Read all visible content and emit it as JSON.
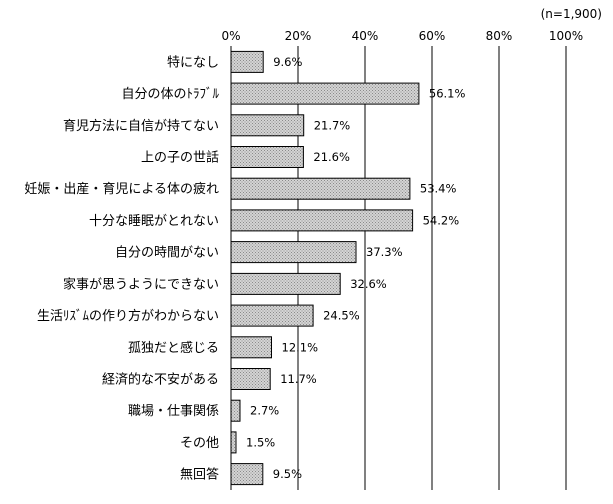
{
  "chart_data": {
    "type": "bar",
    "orientation": "horizontal",
    "note": "(n=1,900)",
    "categories": [
      "特になし",
      "自分の体のﾄﾗﾌﾞﾙ",
      "育児方法に自信が持てない",
      "上の子の世話",
      "妊娠・出産・育児による体の疲れ",
      "十分な睡眠がとれない",
      "自分の時間がない",
      "家事が思うようにできない",
      "生活ﾘｽﾞﾑの作り方がわからない",
      "孤独だと感じる",
      "経済的な不安がある",
      "職場・仕事関係",
      "その他",
      "無回答"
    ],
    "values": [
      9.6,
      56.1,
      21.7,
      21.6,
      53.4,
      54.2,
      37.3,
      32.6,
      24.5,
      12.1,
      11.7,
      2.7,
      1.5,
      9.5
    ],
    "value_labels": [
      "9.6%",
      "56.1%",
      "21.7%",
      "21.6%",
      "53.4%",
      "54.2%",
      "37.3%",
      "32.6%",
      "24.5%",
      "12.1%",
      "11.7%",
      "2.7%",
      "1.5%",
      "9.5%"
    ],
    "xlim": [
      0,
      100
    ],
    "x_ticks": [
      0,
      20,
      40,
      60,
      80,
      100
    ],
    "x_tick_labels": [
      "0%",
      "20%",
      "40%",
      "60%",
      "80%",
      "100%"
    ],
    "grid": true,
    "bar_fill": "#c8c8c8",
    "bar_stroke": "#000000"
  }
}
